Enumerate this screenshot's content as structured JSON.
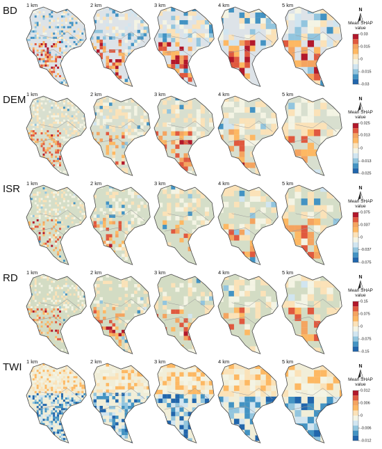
{
  "rows": [
    {
      "label": "BD",
      "ticks": [
        0.03,
        0.015,
        0,
        -0.015,
        -0.03
      ]
    },
    {
      "label": "DEM",
      "ticks": [
        0.025,
        0.013,
        0,
        -0.013,
        -0.025
      ]
    },
    {
      "label": "ISR",
      "ticks": [
        0.075,
        0.037,
        0,
        -0.037,
        -0.075
      ]
    },
    {
      "label": "RD",
      "ticks": [
        0.15,
        0.075,
        0,
        -0.075,
        -0.15
      ]
    },
    {
      "label": "TWI",
      "ticks": [
        0.012,
        0.006,
        0,
        -0.006,
        -0.012
      ]
    }
  ],
  "columns": [
    "1 km",
    "2 km",
    "3 km",
    "4 km",
    "5 km"
  ],
  "legend_title": "Mean SHAP value",
  "north_label": "N"
}
